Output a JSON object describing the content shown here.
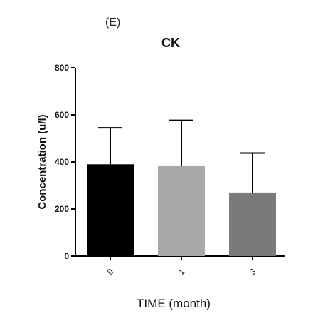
{
  "panel_label": "(E)",
  "chart_data": {
    "type": "bar",
    "title": "CK",
    "xlabel": "TIME (month)",
    "ylabel": "Concentration (u/l)",
    "categories": [
      "0",
      "1",
      "3"
    ],
    "values": [
      390,
      382,
      270
    ],
    "errors": [
      155,
      195,
      168
    ],
    "bar_colors": [
      "#000000",
      "#a8a8a8",
      "#7a7a7a"
    ],
    "ylim": [
      0,
      800
    ],
    "yticks": [
      0,
      200,
      400,
      600,
      800
    ],
    "grid": false,
    "legend": "none"
  }
}
